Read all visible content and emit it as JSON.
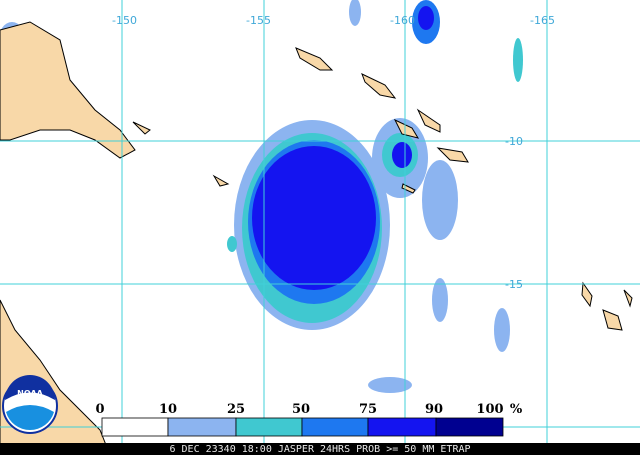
{
  "map": {
    "lon_labels": [
      "-150",
      "-155",
      "-160",
      "-165"
    ],
    "lat_labels": [
      "-10",
      "-15"
    ]
  },
  "legend": {
    "labels": [
      "0",
      "10",
      "25",
      "50",
      "75",
      "90",
      "100"
    ],
    "unit": "%",
    "colors": [
      "#ffffff",
      "#8cb4f0",
      "#40c8d0",
      "#1e78f0",
      "#1414f0",
      "#000090"
    ]
  },
  "logo": "NOAA",
  "footer": "6 DEC 23340 18:00 JASPER 24HRS PROB >= 50 MM ETRAP"
}
